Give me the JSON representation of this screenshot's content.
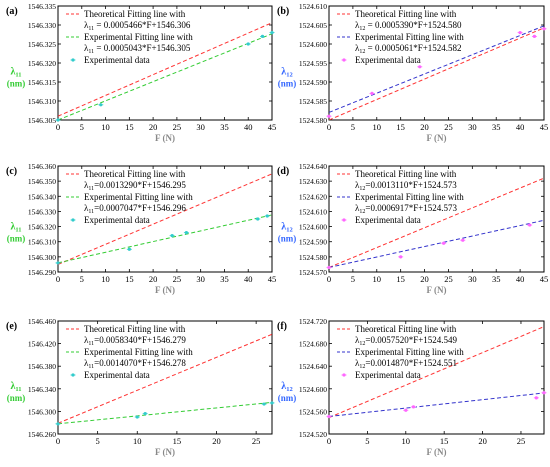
{
  "chart_data": [
    {
      "type": "line",
      "panel": "(a)",
      "xlabel": "F (N)",
      "ylabel_main": "λ",
      "ylabel_sub": "11",
      "ylabel_unit": "(nm)",
      "ylabel_color": "#33cc33",
      "xlim": [
        0,
        45
      ],
      "ylim": [
        1546.305,
        1546.335
      ],
      "xticks": [
        0,
        5,
        10,
        15,
        20,
        25,
        30,
        35,
        40,
        45
      ],
      "yticks": [
        1546.305,
        1546.31,
        1546.315,
        1546.32,
        1546.325,
        1546.33,
        1546.335
      ],
      "xtick_labels": [
        "0",
        "5",
        "10",
        "15",
        "20",
        "25",
        "30",
        "35",
        "40",
        "45"
      ],
      "ytick_labels": [
        "1546.305",
        "1546.310",
        "1546.315",
        "1546.320",
        "1546.325",
        "1546.330",
        "1546.335"
      ],
      "legend": {
        "theoretical_line1": "Theoretical Fitting line with",
        "theoretical_prefix": "λ",
        "theoretical_sub": "11",
        "theoretical_eq": " = 0.0005466*F+1546.306",
        "experimental_line1": "Experimental Fitting line with",
        "experimental_prefix": "λ",
        "experimental_sub": "11",
        "experimental_eq": " = 0.0005043*F+1546.305",
        "data_label": "Experimental data"
      },
      "theoretical": {
        "slope": 0.0005466,
        "intercept": 1546.306,
        "color": "#ff3333"
      },
      "experimental": {
        "slope": 0.0005043,
        "intercept": 1546.305,
        "color": "#33cc33"
      },
      "marker_color": "#33cccc",
      "points": [
        {
          "x": 0,
          "y": 1546.305
        },
        {
          "x": 9,
          "y": 1546.309
        },
        {
          "x": 40,
          "y": 1546.325
        },
        {
          "x": 43,
          "y": 1546.327
        },
        {
          "x": 45,
          "y": 1546.328
        }
      ]
    },
    {
      "type": "line",
      "panel": "(b)",
      "xlabel": "F (N)",
      "ylabel_main": "λ",
      "ylabel_sub": "12",
      "ylabel_unit": "(nm)",
      "ylabel_color": "#3366ff",
      "xlim": [
        0,
        45
      ],
      "ylim": [
        1524.58,
        1524.61
      ],
      "xticks": [
        0,
        5,
        10,
        15,
        20,
        25,
        30,
        35,
        40,
        45
      ],
      "yticks": [
        1524.58,
        1524.585,
        1524.59,
        1524.595,
        1524.6,
        1524.605,
        1524.61
      ],
      "xtick_labels": [
        "0",
        "5",
        "10",
        "15",
        "20",
        "25",
        "30",
        "35",
        "40",
        "45"
      ],
      "ytick_labels": [
        "1524.580",
        "1524.585",
        "1524.590",
        "1524.595",
        "1524.600",
        "1524.605",
        "1524.610"
      ],
      "legend": {
        "theoretical_line1": "Theoretical Fitting line with",
        "theoretical_prefix": "λ",
        "theoretical_sub": "12",
        "theoretical_eq": " = 0.0005390*F+1524.580",
        "experimental_line1": "Experimental Fitting line with",
        "experimental_prefix": "λ",
        "experimental_sub": "12",
        "experimental_eq": " = 0.0005061*F+1524.582",
        "data_label": "Experimental data"
      },
      "theoretical": {
        "slope": 0.000539,
        "intercept": 1524.58,
        "color": "#ff3333"
      },
      "experimental": {
        "slope": 0.0005061,
        "intercept": 1524.582,
        "color": "#3333cc"
      },
      "marker_color": "#ff66ff",
      "points": [
        {
          "x": 0,
          "y": 1524.581
        },
        {
          "x": 9,
          "y": 1524.587
        },
        {
          "x": 19,
          "y": 1524.594
        },
        {
          "x": 40,
          "y": 1524.603
        },
        {
          "x": 43,
          "y": 1524.602
        },
        {
          "x": 45,
          "y": 1524.604
        }
      ]
    },
    {
      "type": "line",
      "panel": "(c)",
      "xlabel": "F (N)",
      "ylabel_main": "λ",
      "ylabel_sub": "11",
      "ylabel_unit": "(nm)",
      "ylabel_color": "#33cc33",
      "xlim": [
        0,
        45
      ],
      "ylim": [
        1546.29,
        1546.36
      ],
      "xticks": [
        0,
        5,
        10,
        15,
        20,
        25,
        30,
        35,
        40,
        45
      ],
      "yticks": [
        1546.29,
        1546.3,
        1546.31,
        1546.32,
        1546.33,
        1546.34,
        1546.35,
        1546.36
      ],
      "xtick_labels": [
        "0",
        "5",
        "10",
        "15",
        "20",
        "25",
        "30",
        "35",
        "40",
        "45"
      ],
      "ytick_labels": [
        "1546.290",
        "1546.300",
        "1546.310",
        "1546.320",
        "1546.330",
        "1546.340",
        "1546.350",
        "1546.360"
      ],
      "legend": {
        "theoretical_line1": "Theoretical Fitting line with",
        "theoretical_prefix": "λ",
        "theoretical_sub": "11",
        "theoretical_eq": "=0.0013290*F+1546.295",
        "experimental_line1": "Experimental Fitting line with",
        "experimental_prefix": "λ",
        "experimental_sub": "11",
        "experimental_eq": "=0.0007047*F+1546.296",
        "data_label": "Experimental data"
      },
      "theoretical": {
        "slope": 0.001329,
        "intercept": 1546.295,
        "color": "#ff3333"
      },
      "experimental": {
        "slope": 0.0007047,
        "intercept": 1546.296,
        "color": "#33cc33"
      },
      "marker_color": "#33cccc",
      "points": [
        {
          "x": 0,
          "y": 1546.296
        },
        {
          "x": 15,
          "y": 1546.305
        },
        {
          "x": 24,
          "y": 1546.314
        },
        {
          "x": 27,
          "y": 1546.316
        },
        {
          "x": 42,
          "y": 1546.325
        },
        {
          "x": 44,
          "y": 1546.327
        }
      ]
    },
    {
      "type": "line",
      "panel": "(d)",
      "xlabel": "F (N)",
      "ylabel_main": "λ",
      "ylabel_sub": "12",
      "ylabel_unit": "(nm)",
      "ylabel_color": "#3366ff",
      "xlim": [
        0,
        45
      ],
      "ylim": [
        1524.57,
        1524.64
      ],
      "xticks": [
        0,
        5,
        10,
        15,
        20,
        25,
        30,
        35,
        40,
        45
      ],
      "yticks": [
        1524.57,
        1524.58,
        1524.59,
        1524.6,
        1524.61,
        1524.62,
        1524.63,
        1524.64
      ],
      "xtick_labels": [
        "0",
        "5",
        "10",
        "15",
        "20",
        "25",
        "30",
        "35",
        "40",
        "45"
      ],
      "ytick_labels": [
        "1524.570",
        "1524.580",
        "1524.590",
        "1524.600",
        "1524.610",
        "1524.620",
        "1524.630",
        "1524.640"
      ],
      "legend": {
        "theoretical_line1": "Theoretical Fitting line with",
        "theoretical_prefix": "λ",
        "theoretical_sub": "12",
        "theoretical_eq": "=0.0013110*F+1524.573",
        "experimental_line1": "Experimental Fitting line with",
        "experimental_prefix": "λ",
        "experimental_sub": "12",
        "experimental_eq": "=0.0006917*F+1524.573",
        "data_label": "Experimental data"
      },
      "theoretical": {
        "slope": 0.001311,
        "intercept": 1524.573,
        "color": "#ff3333"
      },
      "experimental": {
        "slope": 0.0006917,
        "intercept": 1524.573,
        "color": "#3333cc"
      },
      "marker_color": "#ff66ff",
      "points": [
        {
          "x": 0,
          "y": 1524.573
        },
        {
          "x": 15,
          "y": 1524.58
        },
        {
          "x": 24,
          "y": 1524.589
        },
        {
          "x": 28,
          "y": 1524.591
        },
        {
          "x": 42,
          "y": 1524.601
        }
      ]
    },
    {
      "type": "line",
      "panel": "(e)",
      "xlabel": "F (N)",
      "ylabel_main": "λ",
      "ylabel_sub": "11",
      "ylabel_unit": "(nm)",
      "ylabel_color": "#33cc33",
      "xlim": [
        0,
        27
      ],
      "ylim": [
        1546.26,
        1546.46
      ],
      "xticks": [
        0,
        5,
        10,
        15,
        20,
        25
      ],
      "yticks": [
        1546.26,
        1546.3,
        1546.34,
        1546.38,
        1546.42,
        1546.46
      ],
      "xtick_labels": [
        "0",
        "5",
        "10",
        "15",
        "20",
        "25"
      ],
      "ytick_labels": [
        "1546.260",
        "1546.300",
        "1546.340",
        "1546.380",
        "1546.420",
        "1546.460"
      ],
      "legend": {
        "theoretical_line1": "Theoretical Fitting line with",
        "theoretical_prefix": "λ",
        "theoretical_sub": "11",
        "theoretical_eq": "=0.0058340*F+1546.279",
        "experimental_line1": "Experimental Fitting line with",
        "experimental_prefix": "λ",
        "experimental_sub": "11",
        "experimental_eq": "=0.0014070*F+1546.278",
        "data_label": "Experimental data"
      },
      "theoretical": {
        "slope": 0.005834,
        "intercept": 1546.279,
        "color": "#ff3333"
      },
      "experimental": {
        "slope": 0.001407,
        "intercept": 1546.278,
        "color": "#33cc33"
      },
      "marker_color": "#33cccc",
      "points": [
        {
          "x": 0,
          "y": 1546.278
        },
        {
          "x": 10,
          "y": 1546.29
        },
        {
          "x": 11,
          "y": 1546.296
        },
        {
          "x": 26,
          "y": 1546.313
        },
        {
          "x": 27,
          "y": 1546.315
        }
      ]
    },
    {
      "type": "line",
      "panel": "(f)",
      "xlabel": "F (N)",
      "ylabel_main": "λ",
      "ylabel_sub": "12",
      "ylabel_unit": "(nm)",
      "ylabel_color": "#3366ff",
      "xlim": [
        0,
        28
      ],
      "ylim": [
        1524.52,
        1524.72
      ],
      "xticks": [
        0,
        5,
        10,
        15,
        20,
        25
      ],
      "yticks": [
        1524.52,
        1524.56,
        1524.6,
        1524.64,
        1524.68,
        1524.72
      ],
      "xtick_labels": [
        "0",
        "5",
        "10",
        "15",
        "20",
        "25"
      ],
      "ytick_labels": [
        "1524.520",
        "1524.560",
        "1524.600",
        "1524.640",
        "1524.680",
        "1524.720"
      ],
      "legend": {
        "theoretical_line1": "Theoretical Fitting line with",
        "theoretical_prefix": "λ",
        "theoretical_sub": "12",
        "theoretical_eq": "=0.0057520*F+1524.549",
        "experimental_line1": "Experimental Fitting line with",
        "experimental_prefix": "λ",
        "experimental_sub": "12",
        "experimental_eq": "=0.0014870*F+1524.551",
        "data_label": "Experimental data"
      },
      "theoretical": {
        "slope": 0.005752,
        "intercept": 1524.549,
        "color": "#ff3333"
      },
      "experimental": {
        "slope": 0.001487,
        "intercept": 1524.551,
        "color": "#3333cc"
      },
      "marker_color": "#ff66ff",
      "points": [
        {
          "x": 0,
          "y": 1524.551
        },
        {
          "x": 10,
          "y": 1524.562
        },
        {
          "x": 11,
          "y": 1524.568
        },
        {
          "x": 27,
          "y": 1524.584
        },
        {
          "x": 28,
          "y": 1524.593
        }
      ]
    }
  ]
}
